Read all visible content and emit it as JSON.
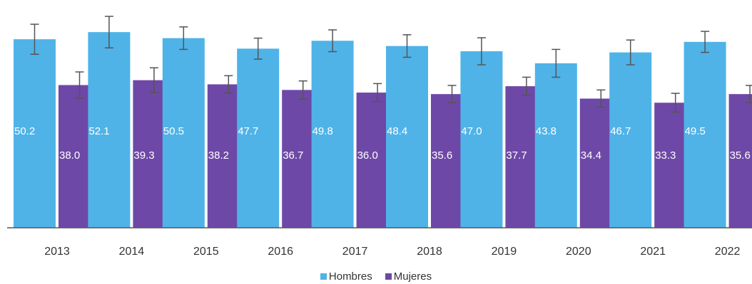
{
  "chart_data": {
    "type": "bar",
    "categories": [
      "2013",
      "2014",
      "2015",
      "2016",
      "2017",
      "2018",
      "2019",
      "2020",
      "2021",
      "2022"
    ],
    "series": [
      {
        "name": "Hombres",
        "color": "#4fb3e8",
        "values": [
          50.2,
          52.1,
          50.5,
          47.7,
          49.8,
          48.4,
          47.0,
          43.8,
          46.7,
          49.5
        ],
        "error_high": [
          54.2,
          56.3,
          53.5,
          50.5,
          52.7,
          51.4,
          50.6,
          47.5,
          50.0,
          52.3
        ]
      },
      {
        "name": "Mujeres",
        "color": "#6e48a6",
        "values": [
          38.0,
          39.3,
          38.2,
          36.7,
          36.0,
          35.6,
          37.7,
          34.4,
          33.3,
          35.6
        ],
        "error_high": [
          41.5,
          42.6,
          40.5,
          39.1,
          38.4,
          37.9,
          40.1,
          36.7,
          35.8,
          37.9
        ]
      }
    ],
    "value_labels": {
      "Hombres": [
        "50.2",
        "52.1",
        "50.5",
        "47.7",
        "49.8",
        "48.4",
        "47.0",
        "43.8",
        "46.7",
        "49.5"
      ],
      "Mujeres": [
        "38.0",
        "39.3",
        "38.2",
        "36.7",
        "36.0",
        "35.6",
        "37.7",
        "34.4",
        "33.3",
        "35.6"
      ]
    },
    "ylim": [
      0,
      58
    ],
    "grid": false,
    "legend_position": "bottom"
  },
  "legend": {
    "hombres": "Hombres",
    "mujeres": "Mujeres"
  }
}
